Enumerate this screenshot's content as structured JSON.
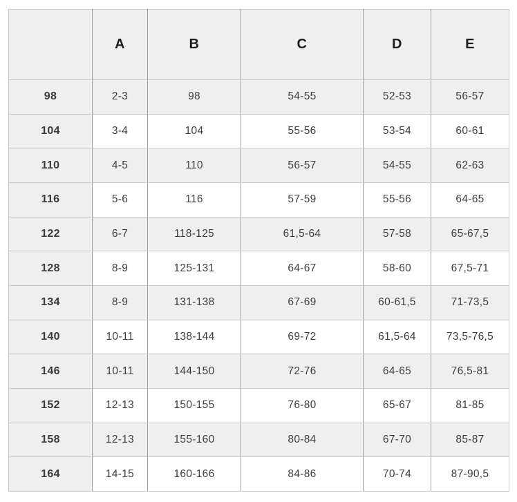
{
  "chart_data": {
    "type": "table",
    "title": "",
    "columns": [
      "",
      "A",
      "B",
      "C",
      "D",
      "E"
    ],
    "rows": [
      {
        "label": "98",
        "values": [
          "2-3",
          "98",
          "54-55",
          "52-53",
          "56-57"
        ]
      },
      {
        "label": "104",
        "values": [
          "3-4",
          "104",
          "55-56",
          "53-54",
          "60-61"
        ]
      },
      {
        "label": "110",
        "values": [
          "4-5",
          "110",
          "56-57",
          "54-55",
          "62-63"
        ]
      },
      {
        "label": "116",
        "values": [
          "5-6",
          "116",
          "57-59",
          "55-56",
          "64-65"
        ]
      },
      {
        "label": "122",
        "values": [
          "6-7",
          "118-125",
          "61,5-64",
          "57-58",
          "65-67,5"
        ]
      },
      {
        "label": "128",
        "values": [
          "8-9",
          "125-131",
          "64-67",
          "58-60",
          "67,5-71"
        ]
      },
      {
        "label": "134",
        "values": [
          "8-9",
          "131-138",
          "67-69",
          "60-61,5",
          "71-73,5"
        ]
      },
      {
        "label": "140",
        "values": [
          "10-11",
          "138-144",
          "69-72",
          "61,5-64",
          "73,5-76,5"
        ]
      },
      {
        "label": "146",
        "values": [
          "10-11",
          "144-150",
          "72-76",
          "64-65",
          "76,5-81"
        ]
      },
      {
        "label": "152",
        "values": [
          "12-13",
          "150-155",
          "76-80",
          "65-67",
          "81-85"
        ]
      },
      {
        "label": "158",
        "values": [
          "12-13",
          "155-160",
          "80-84",
          "67-70",
          "85-87"
        ]
      },
      {
        "label": "164",
        "values": [
          "14-15",
          "160-166",
          "84-86",
          "70-74",
          "87-90,5"
        ]
      }
    ],
    "layout": {
      "zebra_striping": true,
      "first_row_shaded": true,
      "header_shaded": true,
      "label_column_shaded": true
    }
  },
  "colors": {
    "row_shade": "#efefef",
    "row_white": "#ffffff",
    "vertical_gridline": "#9d9d9d",
    "horizontal_gridline": "#cbcbcb",
    "outer_border": "#c6c6c6",
    "text": "#3e3e3e",
    "header_text": "#1d1d1d"
  }
}
